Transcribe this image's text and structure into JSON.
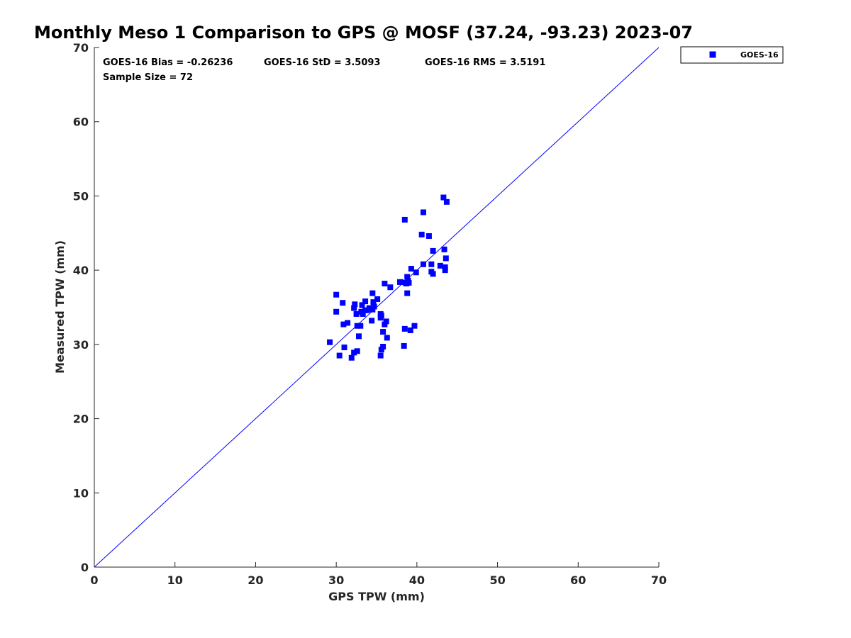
{
  "chart_data": {
    "type": "scatter",
    "title": "Monthly Meso 1 Comparison to GPS @ MOSF (37.24, -93.23) 2023-07",
    "xlabel": "GPS TPW (mm)",
    "ylabel": "Measured TPW (mm)",
    "xlim": [
      0,
      70
    ],
    "ylim": [
      0,
      70
    ],
    "xticks": [
      "0",
      "10",
      "20",
      "30",
      "40",
      "50",
      "60",
      "70"
    ],
    "yticks": [
      "0",
      "10",
      "20",
      "30",
      "40",
      "50",
      "60",
      "70"
    ],
    "grid": false,
    "legend_position": "outside-top-right",
    "stats": {
      "bias": "GOES-16 Bias = -0.26236",
      "std": "GOES-16 StD = 3.5093",
      "rms": "GOES-16 RMS = 3.5191",
      "sample": "Sample Size = 72"
    },
    "reference_line": {
      "x": [
        0,
        70
      ],
      "y": [
        0,
        70
      ],
      "color": "#0000ff"
    },
    "series": [
      {
        "name": "GOES-16",
        "color": "#0000ff",
        "marker": "square",
        "points": [
          [
            43.3,
            49.8
          ],
          [
            43.7,
            49.2
          ],
          [
            40.8,
            47.8
          ],
          [
            38.5,
            46.8
          ],
          [
            40.6,
            44.8
          ],
          [
            41.5,
            44.6
          ],
          [
            43.4,
            42.8
          ],
          [
            42.0,
            42.6
          ],
          [
            43.6,
            41.6
          ],
          [
            40.8,
            40.8
          ],
          [
            41.8,
            40.8
          ],
          [
            42.9,
            40.6
          ],
          [
            43.5,
            40.4
          ],
          [
            39.3,
            40.2
          ],
          [
            43.5,
            40.0
          ],
          [
            41.8,
            39.8
          ],
          [
            39.9,
            39.7
          ],
          [
            42.0,
            39.5
          ],
          [
            38.8,
            39.1
          ],
          [
            38.9,
            38.6
          ],
          [
            38.0,
            38.4
          ],
          [
            38.6,
            38.3
          ],
          [
            39.0,
            38.3
          ],
          [
            38.7,
            38.2
          ],
          [
            36.0,
            38.2
          ],
          [
            36.7,
            37.7
          ],
          [
            38.8,
            36.9
          ],
          [
            34.5,
            36.9
          ],
          [
            30.0,
            36.7
          ],
          [
            35.1,
            36.1
          ],
          [
            34.6,
            35.7
          ],
          [
            30.8,
            35.6
          ],
          [
            33.6,
            35.8
          ],
          [
            32.3,
            35.4
          ],
          [
            33.2,
            35.3
          ],
          [
            32.2,
            34.9
          ],
          [
            34.1,
            34.9
          ],
          [
            34.5,
            34.7
          ],
          [
            33.6,
            34.6
          ],
          [
            30.0,
            34.4
          ],
          [
            33.1,
            34.4
          ],
          [
            32.5,
            34.1
          ],
          [
            33.3,
            34.1
          ],
          [
            35.5,
            34.1
          ],
          [
            35.5,
            33.6
          ],
          [
            34.4,
            33.2
          ],
          [
            36.2,
            33.1
          ],
          [
            30.9,
            32.7
          ],
          [
            31.4,
            32.9
          ],
          [
            32.6,
            32.5
          ],
          [
            33.0,
            32.5
          ],
          [
            36.0,
            32.7
          ],
          [
            38.5,
            32.1
          ],
          [
            39.2,
            31.9
          ],
          [
            39.7,
            32.5
          ],
          [
            35.8,
            31.7
          ],
          [
            32.8,
            31.1
          ],
          [
            36.3,
            30.9
          ],
          [
            29.2,
            30.3
          ],
          [
            31.0,
            29.6
          ],
          [
            35.8,
            29.7
          ],
          [
            38.4,
            29.8
          ],
          [
            35.6,
            29.3
          ],
          [
            32.6,
            29.1
          ],
          [
            32.2,
            28.9
          ],
          [
            30.4,
            28.5
          ],
          [
            35.5,
            28.5
          ],
          [
            31.9,
            28.2
          ],
          [
            34.7,
            35.1
          ],
          [
            35.6,
            33.9
          ],
          [
            33.8,
            34.6
          ],
          [
            37.9,
            38.4
          ]
        ]
      }
    ]
  }
}
